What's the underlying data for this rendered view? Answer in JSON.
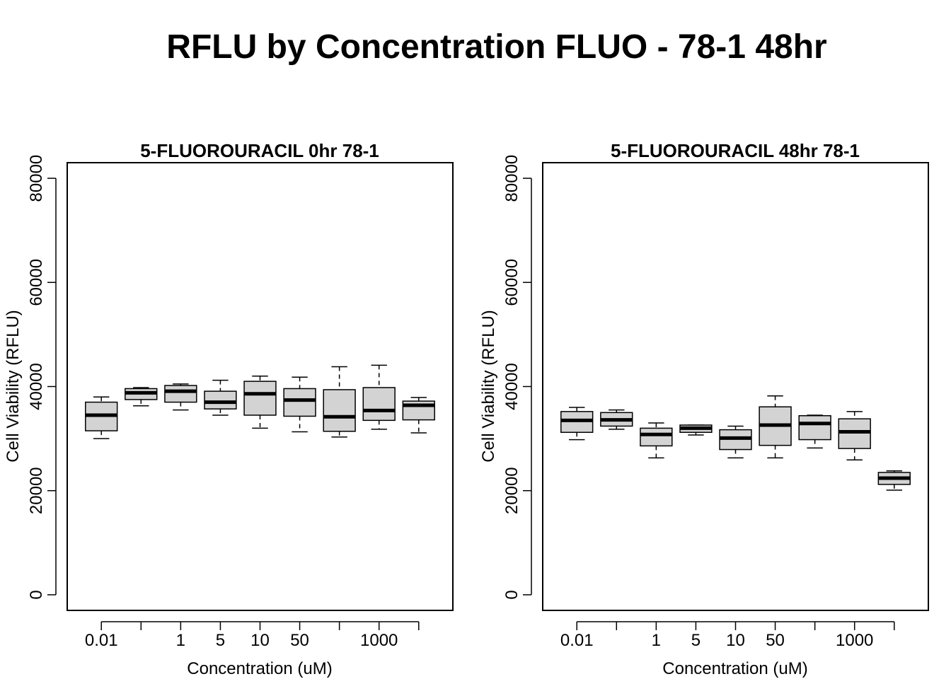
{
  "figure": {
    "title": "RFLU by Concentration FLUO - 78-1 48hr"
  },
  "chart_data": [
    {
      "type": "box",
      "title": "5-FLUOROURACIL 0hr 78-1",
      "xlabel": "Concentration (uM)",
      "ylabel": "Cell Viability (RFLU)",
      "ylim": [
        -3000,
        83000
      ],
      "yticks": [
        0,
        20000,
        40000,
        60000,
        80000
      ],
      "ytick_labels": [
        "0",
        "20000",
        "40000",
        "60000",
        "80000"
      ],
      "categories": [
        "0.01",
        "",
        "1",
        "5",
        "10",
        "50",
        "",
        "1000",
        ""
      ],
      "boxes": [
        {
          "min": 30000,
          "q1": 31500,
          "median": 34500,
          "q3": 37000,
          "max": 38000
        },
        {
          "min": 36300,
          "q1": 37500,
          "median": 38800,
          "q3": 39600,
          "max": 39800
        },
        {
          "min": 35500,
          "q1": 37000,
          "median": 39100,
          "q3": 40200,
          "max": 40500
        },
        {
          "min": 34500,
          "q1": 35700,
          "median": 37000,
          "q3": 39100,
          "max": 41200
        },
        {
          "min": 32000,
          "q1": 34500,
          "median": 38600,
          "q3": 41000,
          "max": 42000
        },
        {
          "min": 31300,
          "q1": 34300,
          "median": 37400,
          "q3": 39600,
          "max": 41800
        },
        {
          "min": 30300,
          "q1": 31400,
          "median": 34200,
          "q3": 39400,
          "max": 43800
        },
        {
          "min": 31800,
          "q1": 33500,
          "median": 35400,
          "q3": 39800,
          "max": 44100
        },
        {
          "min": 31100,
          "q1": 33600,
          "median": 36400,
          "q3": 37200,
          "max": 37900
        }
      ]
    },
    {
      "type": "box",
      "title": "5-FLUOROURACIL 48hr 78-1",
      "xlabel": "Concentration (uM)",
      "ylabel": "Cell Viability (RFLU)",
      "ylim": [
        -3000,
        83000
      ],
      "yticks": [
        0,
        20000,
        40000,
        60000,
        80000
      ],
      "ytick_labels": [
        "0",
        "20000",
        "40000",
        "60000",
        "80000"
      ],
      "categories": [
        "0.01",
        "",
        "1",
        "5",
        "10",
        "50",
        "",
        "1000",
        ""
      ],
      "boxes": [
        {
          "min": 29800,
          "q1": 31200,
          "median": 33500,
          "q3": 35200,
          "max": 36000
        },
        {
          "min": 31800,
          "q1": 32400,
          "median": 33600,
          "q3": 35000,
          "max": 35500
        },
        {
          "min": 26300,
          "q1": 28600,
          "median": 30800,
          "q3": 32000,
          "max": 33000
        },
        {
          "min": 30700,
          "q1": 31200,
          "median": 32000,
          "q3": 32600,
          "max": 32600
        },
        {
          "min": 26300,
          "q1": 27900,
          "median": 30100,
          "q3": 31700,
          "max": 32400
        },
        {
          "min": 26300,
          "q1": 28700,
          "median": 32600,
          "q3": 36100,
          "max": 38200
        },
        {
          "min": 28200,
          "q1": 29800,
          "median": 32900,
          "q3": 34400,
          "max": 34500
        },
        {
          "min": 25900,
          "q1": 28100,
          "median": 31300,
          "q3": 33800,
          "max": 35200
        },
        {
          "min": 20100,
          "q1": 21200,
          "median": 22400,
          "q3": 23500,
          "max": 23800
        }
      ]
    }
  ]
}
